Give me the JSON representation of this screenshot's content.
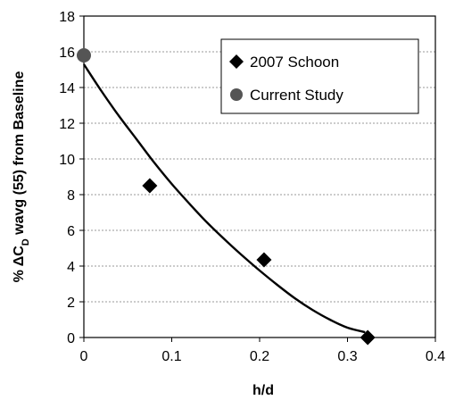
{
  "chart_data": {
    "type": "scatter",
    "title": "",
    "xlabel": "h/d",
    "ylabel": "% ΔC",
    "ylabel_sub": "D",
    "ylabel_rest": " wavg (55) from Baseline",
    "xlim": [
      0,
      0.4
    ],
    "ylim": [
      0,
      18
    ],
    "xticks": [
      "0",
      "0.1",
      "0.2",
      "0.3",
      "0.4"
    ],
    "yticks": [
      "0",
      "2",
      "4",
      "6",
      "8",
      "10",
      "12",
      "14",
      "16",
      "18"
    ],
    "grid": "horizontal dashed",
    "legend_position": "top-right",
    "series": [
      {
        "name": "2007 Schoon",
        "marker": "diamond",
        "color": "#000000",
        "points": [
          [
            0.075,
            8.5
          ],
          [
            0.205,
            4.35
          ],
          [
            0.323,
            0.0
          ]
        ]
      },
      {
        "name": "Current Study",
        "marker": "circle",
        "color": "#555555",
        "points": [
          [
            0.0,
            15.8
          ]
        ]
      }
    ],
    "trendline": {
      "color": "#000000",
      "points": [
        [
          0.0,
          15.3
        ],
        [
          0.02,
          13.8
        ],
        [
          0.04,
          12.4
        ],
        [
          0.06,
          11.1
        ],
        [
          0.08,
          9.8
        ],
        [
          0.1,
          8.6
        ],
        [
          0.12,
          7.5
        ],
        [
          0.14,
          6.45
        ],
        [
          0.16,
          5.5
        ],
        [
          0.18,
          4.6
        ],
        [
          0.2,
          3.75
        ],
        [
          0.22,
          2.95
        ],
        [
          0.24,
          2.2
        ],
        [
          0.26,
          1.55
        ],
        [
          0.28,
          1.0
        ],
        [
          0.3,
          0.55
        ],
        [
          0.32,
          0.3
        ]
      ]
    }
  }
}
